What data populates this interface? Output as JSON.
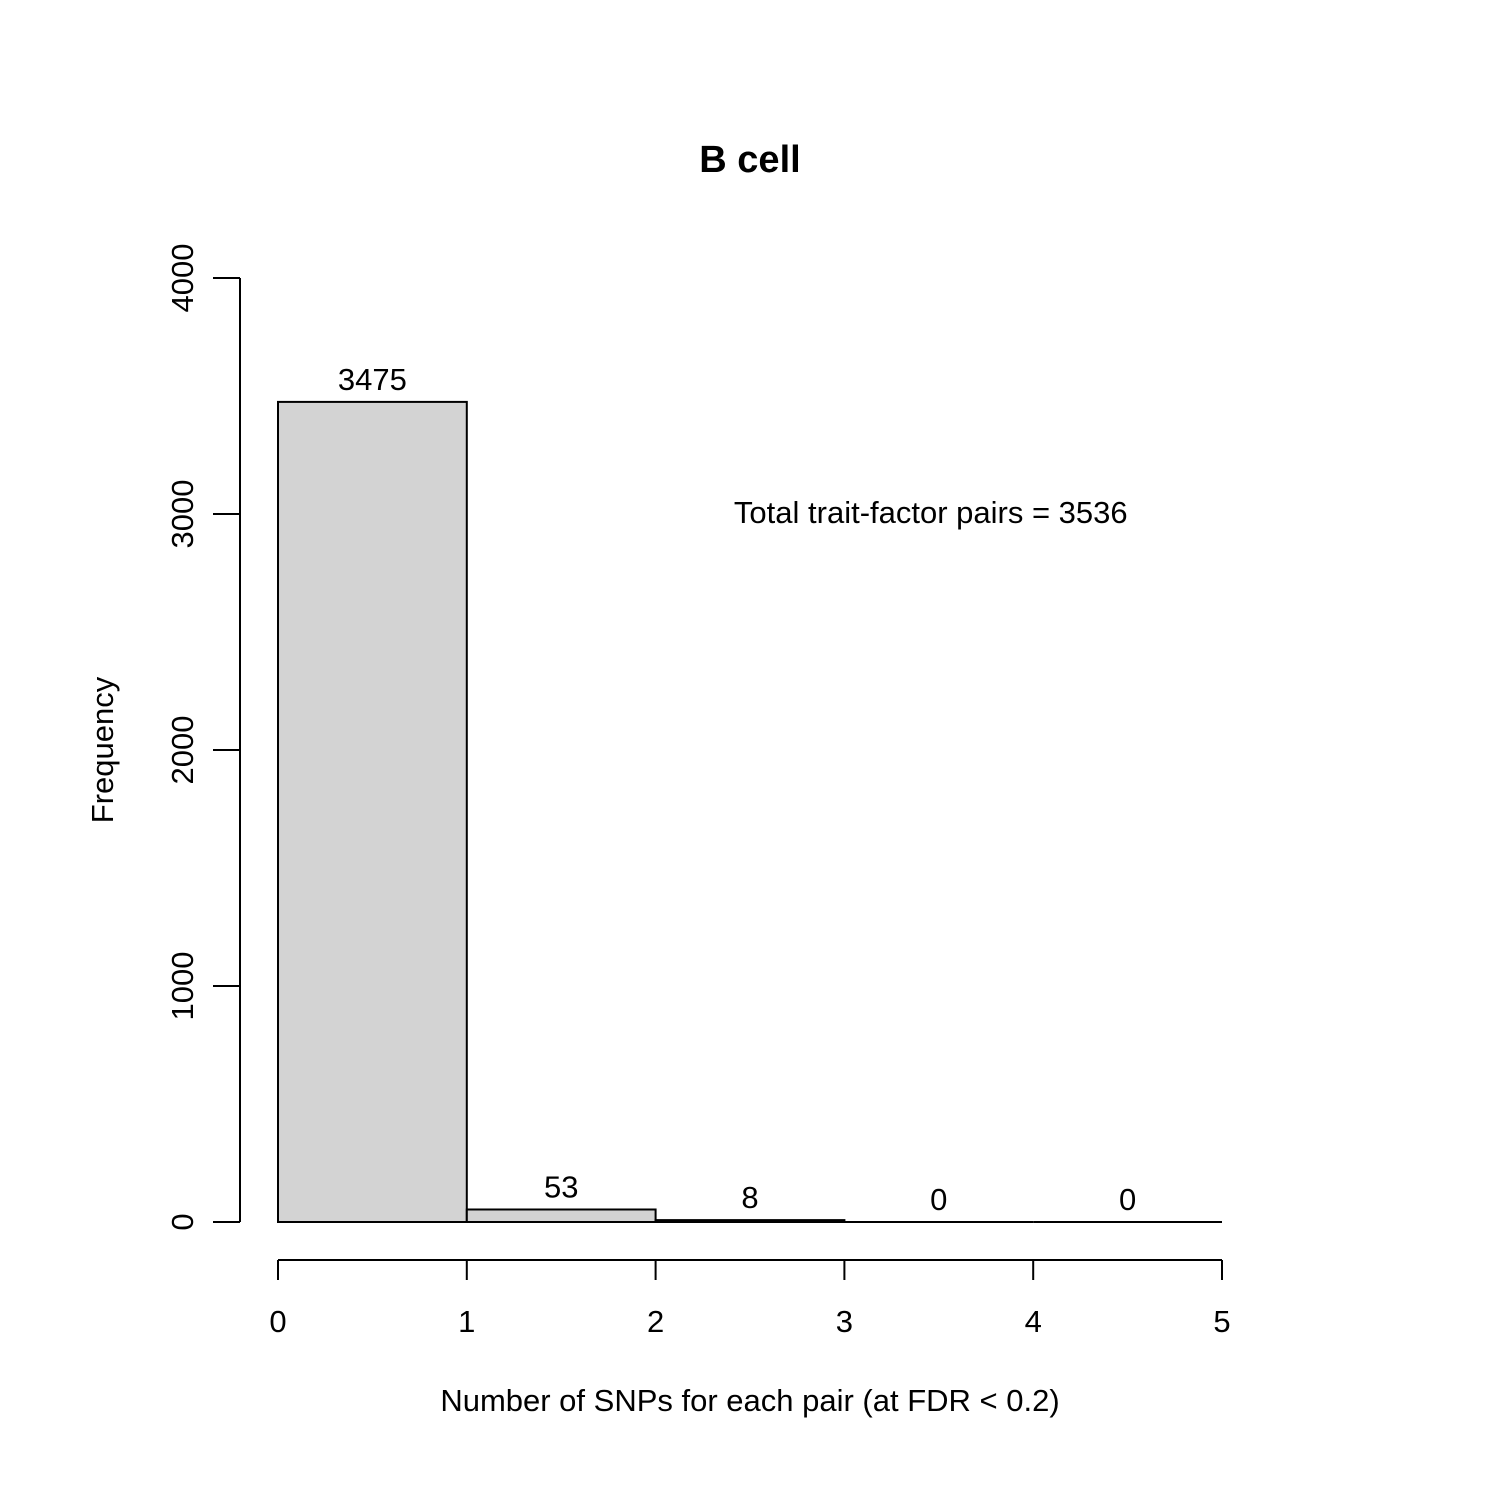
{
  "chart_data": {
    "type": "bar",
    "title": "B cell",
    "xlabel": "Number of SNPs for each pair (at FDR < 0.2)",
    "ylabel": "Frequency",
    "bins": [
      {
        "x0": 0,
        "x1": 1,
        "value": 3475,
        "label": "3475"
      },
      {
        "x0": 1,
        "x1": 2,
        "value": 53,
        "label": "53"
      },
      {
        "x0": 2,
        "x1": 3,
        "value": 8,
        "label": "8"
      },
      {
        "x0": 3,
        "x1": 4,
        "value": 0,
        "label": "0"
      },
      {
        "x0": 4,
        "x1": 5,
        "value": 0,
        "label": "0"
      }
    ],
    "xlim": [
      0,
      5
    ],
    "ylim": [
      0,
      4000
    ],
    "x_ticks": [
      0,
      1,
      2,
      3,
      4,
      5
    ],
    "x_tick_labels": [
      "0",
      "1",
      "2",
      "3",
      "4",
      "5"
    ],
    "y_ticks": [
      0,
      1000,
      2000,
      3000,
      4000
    ],
    "y_tick_labels": [
      "0",
      "1000",
      "2000",
      "3000",
      "4000"
    ],
    "annotation": {
      "text": "Total trait-factor pairs = 3536",
      "x": 3.5,
      "y": 3000
    },
    "bar_fill": "#d3d3d3",
    "grid": false
  }
}
